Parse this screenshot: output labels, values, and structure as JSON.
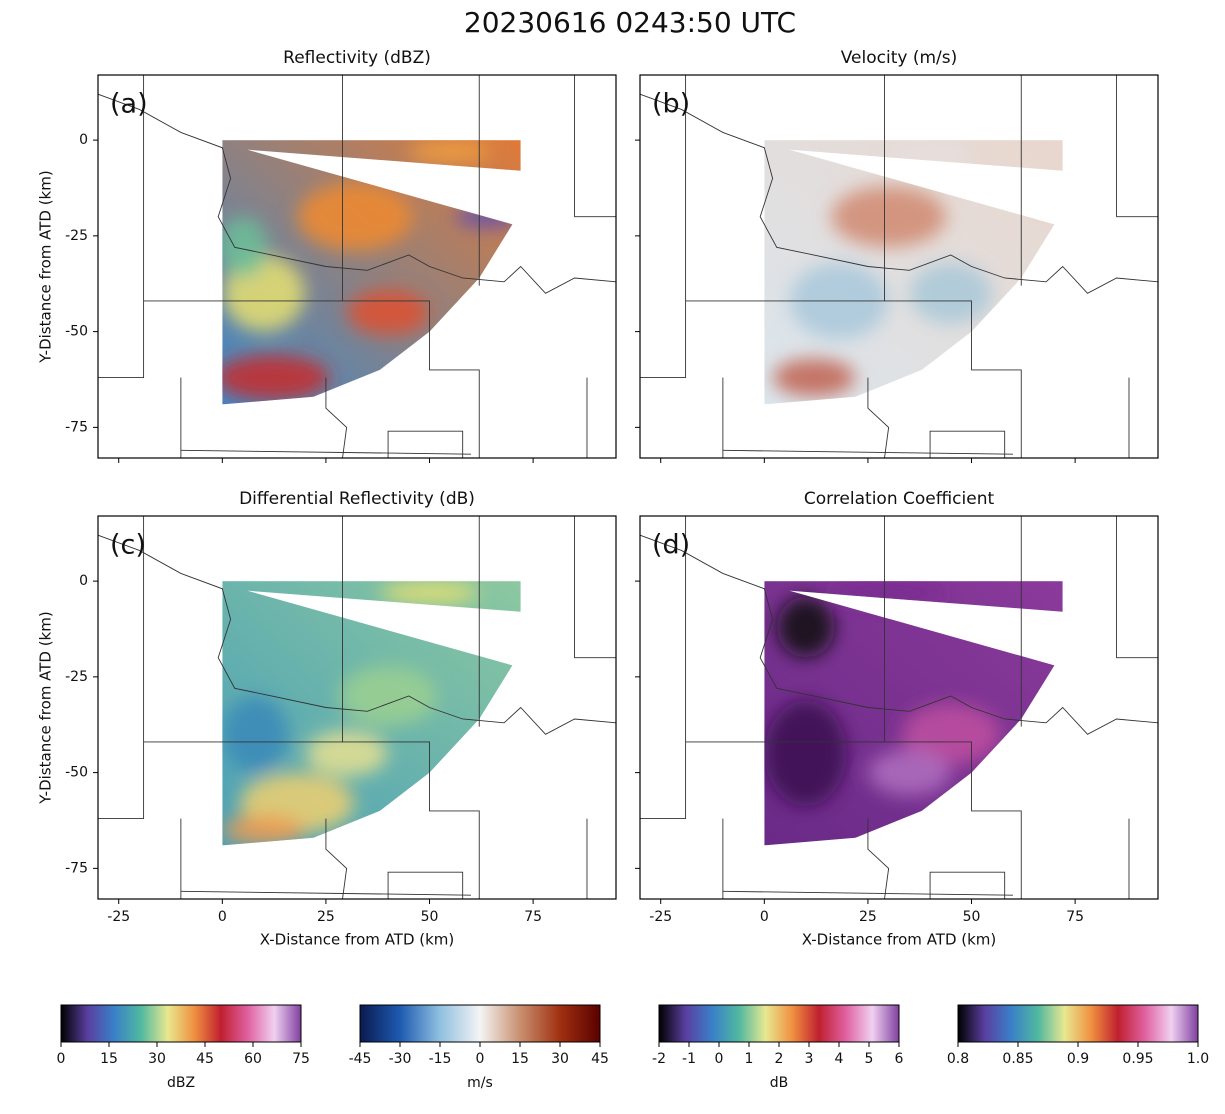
{
  "figure": {
    "title": "20230616 0243:50 UTC"
  },
  "axes": {
    "xlim": [
      -30,
      95
    ],
    "ylim": [
      -83,
      17
    ],
    "xticks": [
      -25,
      0,
      25,
      50,
      75
    ],
    "yticks": [
      0,
      -25,
      -50,
      -75
    ],
    "xlabel": "X-Distance from ATD (km)",
    "ylabel": "Y-Distance from ATD (km)"
  },
  "panels": [
    {
      "label": "(a)",
      "title": "Reflectivity (dBZ)"
    },
    {
      "label": "(b)",
      "title": "Velocity (m/s)"
    },
    {
      "label": "(c)",
      "title": "Differential Reflectivity (dB)"
    },
    {
      "label": "(d)",
      "title": "Correlation Coefficient"
    }
  ],
  "colorbars": [
    {
      "label": "dBZ",
      "lim": [
        0,
        75
      ],
      "ticks": [
        0,
        15,
        30,
        45,
        60,
        75
      ],
      "colors": [
        "#000000",
        "#5a3fa0",
        "#3a80c8",
        "#50b8a0",
        "#e8e890",
        "#f09040",
        "#c02030",
        "#e060a0",
        "#f0d0f0",
        "#8040a0"
      ]
    },
    {
      "label": "m/s",
      "lim": [
        -45,
        45
      ],
      "ticks": [
        -45,
        -30,
        -15,
        0,
        15,
        30,
        45
      ],
      "colors": [
        "#0a1a50",
        "#1e5ab0",
        "#90c0e0",
        "#f4f4f4",
        "#c89070",
        "#a03010",
        "#5a0000"
      ]
    },
    {
      "label": "dB",
      "lim": [
        -2,
        6
      ],
      "ticks": [
        -2,
        -1,
        0,
        1,
        2,
        3,
        4,
        5,
        6
      ],
      "colors": [
        "#000000",
        "#5a3fa0",
        "#3a80c8",
        "#50b8a0",
        "#e8e890",
        "#f09040",
        "#c02030",
        "#e060a0",
        "#f0d0f0",
        "#8040a0"
      ]
    },
    {
      "label": "",
      "lim": [
        0.8,
        1
      ],
      "ticks": [
        0.8,
        0.85,
        0.9,
        0.95,
        {
          "value": 1,
          "label": "1.0"
        }
      ],
      "colors": [
        "#000000",
        "#5a3fa0",
        "#3a80c8",
        "#50b8a0",
        "#e8e890",
        "#f09040",
        "#c02030",
        "#e060a0",
        "#f0d0f0",
        "#8040a0"
      ]
    }
  ]
}
